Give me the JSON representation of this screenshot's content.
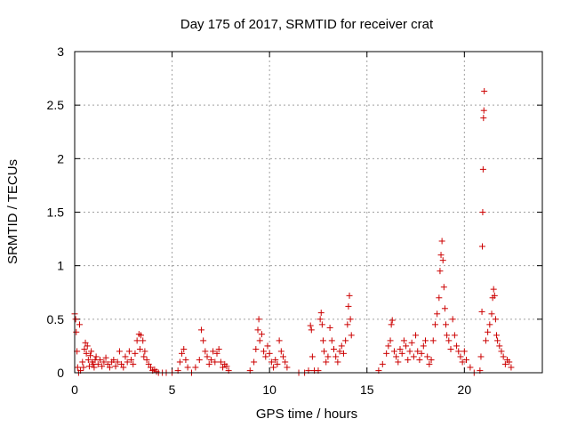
{
  "chart_data": {
    "type": "scatter",
    "title": "Day 175 of 2017, SRMTID for receiver crat",
    "xlabel": "GPS time / hours",
    "ylabel": "SRMTID / TECUs",
    "xlim": [
      0,
      24
    ],
    "ylim": [
      0,
      3
    ],
    "xticks": [
      0,
      5,
      10,
      15,
      20
    ],
    "xtick_labels": [
      "0",
      "5",
      "10",
      "15",
      "20"
    ],
    "yticks": [
      0,
      0.5,
      1,
      1.5,
      2,
      2.5,
      3
    ],
    "ytick_labels": [
      "0",
      "0.5",
      "1",
      "1.5",
      "2",
      "2.5",
      "3"
    ],
    "grid": true,
    "marker": "+",
    "color": "#cc0000",
    "series": [
      {
        "name": "SRMTID",
        "points": [
          [
            0.0,
            0.55
          ],
          [
            0.05,
            0.5
          ],
          [
            0.08,
            0.38
          ],
          [
            0.12,
            0.2
          ],
          [
            0.15,
            0.05
          ],
          [
            0.2,
            0.0
          ],
          [
            0.25,
            0.45
          ],
          [
            0.3,
            0.02
          ],
          [
            0.4,
            0.1
          ],
          [
            0.45,
            0.05
          ],
          [
            0.5,
            0.22
          ],
          [
            0.55,
            0.28
          ],
          [
            0.6,
            0.18
          ],
          [
            0.65,
            0.25
          ],
          [
            0.7,
            0.12
          ],
          [
            0.75,
            0.06
          ],
          [
            0.8,
            0.16
          ],
          [
            0.85,
            0.2
          ],
          [
            0.9,
            0.1
          ],
          [
            0.95,
            0.08
          ],
          [
            1.0,
            0.05
          ],
          [
            1.05,
            0.12
          ],
          [
            1.1,
            0.15
          ],
          [
            1.2,
            0.08
          ],
          [
            1.3,
            0.12
          ],
          [
            1.4,
            0.06
          ],
          [
            1.5,
            0.1
          ],
          [
            1.6,
            0.14
          ],
          [
            1.7,
            0.08
          ],
          [
            1.8,
            0.05
          ],
          [
            1.9,
            0.1
          ],
          [
            2.0,
            0.12
          ],
          [
            2.1,
            0.06
          ],
          [
            2.2,
            0.1
          ],
          [
            2.3,
            0.2
          ],
          [
            2.4,
            0.08
          ],
          [
            2.5,
            0.05
          ],
          [
            2.6,
            0.15
          ],
          [
            2.7,
            0.1
          ],
          [
            2.8,
            0.2
          ],
          [
            2.9,
            0.12
          ],
          [
            3.0,
            0.08
          ],
          [
            3.1,
            0.18
          ],
          [
            3.2,
            0.3
          ],
          [
            3.3,
            0.36
          ],
          [
            3.35,
            0.22
          ],
          [
            3.4,
            0.35
          ],
          [
            3.5,
            0.3
          ],
          [
            3.55,
            0.15
          ],
          [
            3.6,
            0.2
          ],
          [
            3.7,
            0.12
          ],
          [
            3.8,
            0.08
          ],
          [
            3.9,
            0.05
          ],
          [
            4.0,
            0.02
          ],
          [
            4.1,
            0.03
          ],
          [
            4.2,
            0.01
          ],
          [
            4.3,
            0.0
          ],
          [
            4.5,
            0.0
          ],
          [
            4.7,
            0.0
          ],
          [
            5.0,
            0.0
          ],
          [
            5.3,
            0.02
          ],
          [
            5.4,
            0.1
          ],
          [
            5.5,
            0.18
          ],
          [
            5.6,
            0.22
          ],
          [
            5.7,
            0.12
          ],
          [
            5.8,
            0.05
          ],
          [
            6.0,
            0.0
          ],
          [
            6.2,
            0.05
          ],
          [
            6.4,
            0.12
          ],
          [
            6.5,
            0.4
          ],
          [
            6.6,
            0.3
          ],
          [
            6.7,
            0.2
          ],
          [
            6.8,
            0.15
          ],
          [
            6.9,
            0.08
          ],
          [
            7.0,
            0.12
          ],
          [
            7.1,
            0.2
          ],
          [
            7.2,
            0.1
          ],
          [
            7.3,
            0.18
          ],
          [
            7.4,
            0.22
          ],
          [
            7.5,
            0.1
          ],
          [
            7.6,
            0.05
          ],
          [
            7.7,
            0.08
          ],
          [
            7.8,
            0.06
          ],
          [
            7.9,
            0.02
          ],
          [
            9.0,
            0.02
          ],
          [
            9.2,
            0.1
          ],
          [
            9.3,
            0.22
          ],
          [
            9.4,
            0.4
          ],
          [
            9.45,
            0.5
          ],
          [
            9.5,
            0.3
          ],
          [
            9.6,
            0.36
          ],
          [
            9.7,
            0.2
          ],
          [
            9.8,
            0.15
          ],
          [
            9.9,
            0.25
          ],
          [
            10.0,
            0.18
          ],
          [
            10.1,
            0.1
          ],
          [
            10.2,
            0.05
          ],
          [
            10.3,
            0.12
          ],
          [
            10.4,
            0.08
          ],
          [
            10.5,
            0.3
          ],
          [
            10.6,
            0.2
          ],
          [
            10.7,
            0.15
          ],
          [
            10.8,
            0.1
          ],
          [
            10.9,
            0.05
          ],
          [
            11.5,
            0.0
          ],
          [
            11.8,
            0.0
          ],
          [
            12.0,
            0.02
          ],
          [
            12.1,
            0.44
          ],
          [
            12.15,
            0.4
          ],
          [
            12.2,
            0.15
          ],
          [
            12.3,
            0.02
          ],
          [
            12.5,
            0.02
          ],
          [
            12.6,
            0.5
          ],
          [
            12.65,
            0.56
          ],
          [
            12.7,
            0.45
          ],
          [
            12.75,
            0.3
          ],
          [
            12.8,
            0.2
          ],
          [
            12.9,
            0.1
          ],
          [
            13.0,
            0.15
          ],
          [
            13.1,
            0.42
          ],
          [
            13.2,
            0.3
          ],
          [
            13.3,
            0.22
          ],
          [
            13.4,
            0.15
          ],
          [
            13.5,
            0.1
          ],
          [
            13.6,
            0.2
          ],
          [
            13.7,
            0.25
          ],
          [
            13.8,
            0.18
          ],
          [
            13.9,
            0.3
          ],
          [
            14.0,
            0.45
          ],
          [
            14.05,
            0.62
          ],
          [
            14.1,
            0.72
          ],
          [
            14.15,
            0.5
          ],
          [
            14.2,
            0.35
          ],
          [
            15.6,
            0.02
          ],
          [
            15.8,
            0.08
          ],
          [
            16.0,
            0.18
          ],
          [
            16.1,
            0.25
          ],
          [
            16.2,
            0.3
          ],
          [
            16.25,
            0.45
          ],
          [
            16.3,
            0.49
          ],
          [
            16.4,
            0.2
          ],
          [
            16.5,
            0.15
          ],
          [
            16.6,
            0.1
          ],
          [
            16.7,
            0.22
          ],
          [
            16.8,
            0.18
          ],
          [
            16.9,
            0.3
          ],
          [
            17.0,
            0.25
          ],
          [
            17.1,
            0.12
          ],
          [
            17.2,
            0.2
          ],
          [
            17.3,
            0.28
          ],
          [
            17.4,
            0.15
          ],
          [
            17.5,
            0.35
          ],
          [
            17.6,
            0.2
          ],
          [
            17.7,
            0.12
          ],
          [
            17.8,
            0.18
          ],
          [
            17.9,
            0.25
          ],
          [
            18.0,
            0.3
          ],
          [
            18.1,
            0.15
          ],
          [
            18.2,
            0.08
          ],
          [
            18.3,
            0.12
          ],
          [
            18.4,
            0.3
          ],
          [
            18.5,
            0.45
          ],
          [
            18.6,
            0.55
          ],
          [
            18.7,
            0.7
          ],
          [
            18.75,
            0.95
          ],
          [
            18.8,
            1.1
          ],
          [
            18.85,
            1.23
          ],
          [
            18.9,
            1.05
          ],
          [
            18.95,
            0.8
          ],
          [
            19.0,
            0.6
          ],
          [
            19.05,
            0.45
          ],
          [
            19.1,
            0.35
          ],
          [
            19.2,
            0.3
          ],
          [
            19.3,
            0.22
          ],
          [
            19.4,
            0.5
          ],
          [
            19.5,
            0.35
          ],
          [
            19.6,
            0.25
          ],
          [
            19.7,
            0.2
          ],
          [
            19.8,
            0.15
          ],
          [
            19.9,
            0.1
          ],
          [
            20.0,
            0.2
          ],
          [
            20.1,
            0.12
          ],
          [
            20.3,
            0.05
          ],
          [
            20.5,
            0.0
          ],
          [
            20.8,
            0.02
          ],
          [
            20.85,
            0.15
          ],
          [
            20.9,
            0.57
          ],
          [
            20.92,
            1.18
          ],
          [
            20.94,
            1.5
          ],
          [
            20.96,
            1.9
          ],
          [
            20.98,
            2.38
          ],
          [
            21.0,
            2.45
          ],
          [
            21.02,
            2.63
          ],
          [
            21.1,
            0.3
          ],
          [
            21.2,
            0.38
          ],
          [
            21.3,
            0.45
          ],
          [
            21.4,
            0.55
          ],
          [
            21.45,
            0.7
          ],
          [
            21.5,
            0.78
          ],
          [
            21.55,
            0.72
          ],
          [
            21.6,
            0.5
          ],
          [
            21.65,
            0.35
          ],
          [
            21.7,
            0.3
          ],
          [
            21.8,
            0.25
          ],
          [
            21.9,
            0.2
          ],
          [
            22.0,
            0.15
          ],
          [
            22.1,
            0.08
          ],
          [
            22.2,
            0.12
          ],
          [
            22.3,
            0.1
          ],
          [
            22.4,
            0.05
          ]
        ]
      }
    ]
  }
}
